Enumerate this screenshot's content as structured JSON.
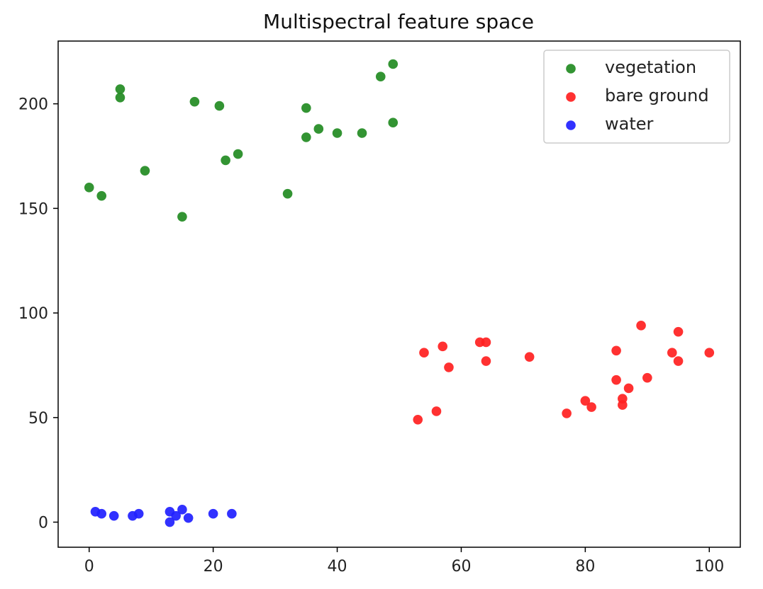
{
  "chart_data": {
    "type": "scatter",
    "title": "Multispectral feature space",
    "xlabel": "",
    "ylabel": "",
    "xlim": [
      -5,
      105
    ],
    "ylim": [
      -12,
      230
    ],
    "xticks": [
      0,
      20,
      40,
      60,
      80,
      100
    ],
    "yticks": [
      0,
      50,
      100,
      150,
      200
    ],
    "grid": false,
    "legend_position": "top-right",
    "series": [
      {
        "name": "vegetation",
        "color": "#228b22",
        "points": [
          [
            0,
            160
          ],
          [
            2,
            156
          ],
          [
            5,
            207
          ],
          [
            5,
            203
          ],
          [
            9,
            168
          ],
          [
            15,
            146
          ],
          [
            17,
            201
          ],
          [
            21,
            199
          ],
          [
            22,
            173
          ],
          [
            24,
            176
          ],
          [
            32,
            157
          ],
          [
            35,
            198
          ],
          [
            35,
            184
          ],
          [
            37,
            188
          ],
          [
            40,
            186
          ],
          [
            44,
            186
          ],
          [
            47,
            213
          ],
          [
            49,
            219
          ],
          [
            49,
            191
          ]
        ]
      },
      {
        "name": "bare ground",
        "color": "#ff2020",
        "points": [
          [
            53,
            49
          ],
          [
            54,
            81
          ],
          [
            56,
            53
          ],
          [
            57,
            84
          ],
          [
            58,
            74
          ],
          [
            63,
            86
          ],
          [
            64,
            86
          ],
          [
            64,
            77
          ],
          [
            71,
            79
          ],
          [
            77,
            52
          ],
          [
            80,
            58
          ],
          [
            81,
            55
          ],
          [
            85,
            82
          ],
          [
            85,
            68
          ],
          [
            86,
            59
          ],
          [
            86,
            56
          ],
          [
            87,
            64
          ],
          [
            89,
            94
          ],
          [
            90,
            69
          ],
          [
            94,
            81
          ],
          [
            95,
            91
          ],
          [
            95,
            77
          ],
          [
            100,
            81
          ]
        ]
      },
      {
        "name": "water",
        "color": "#2020ff",
        "points": [
          [
            1,
            5
          ],
          [
            2,
            4
          ],
          [
            4,
            3
          ],
          [
            7,
            3
          ],
          [
            8,
            4
          ],
          [
            13,
            5
          ],
          [
            13,
            0
          ],
          [
            14,
            3
          ],
          [
            15,
            6
          ],
          [
            16,
            2
          ],
          [
            20,
            4
          ],
          [
            23,
            4
          ]
        ]
      }
    ]
  }
}
